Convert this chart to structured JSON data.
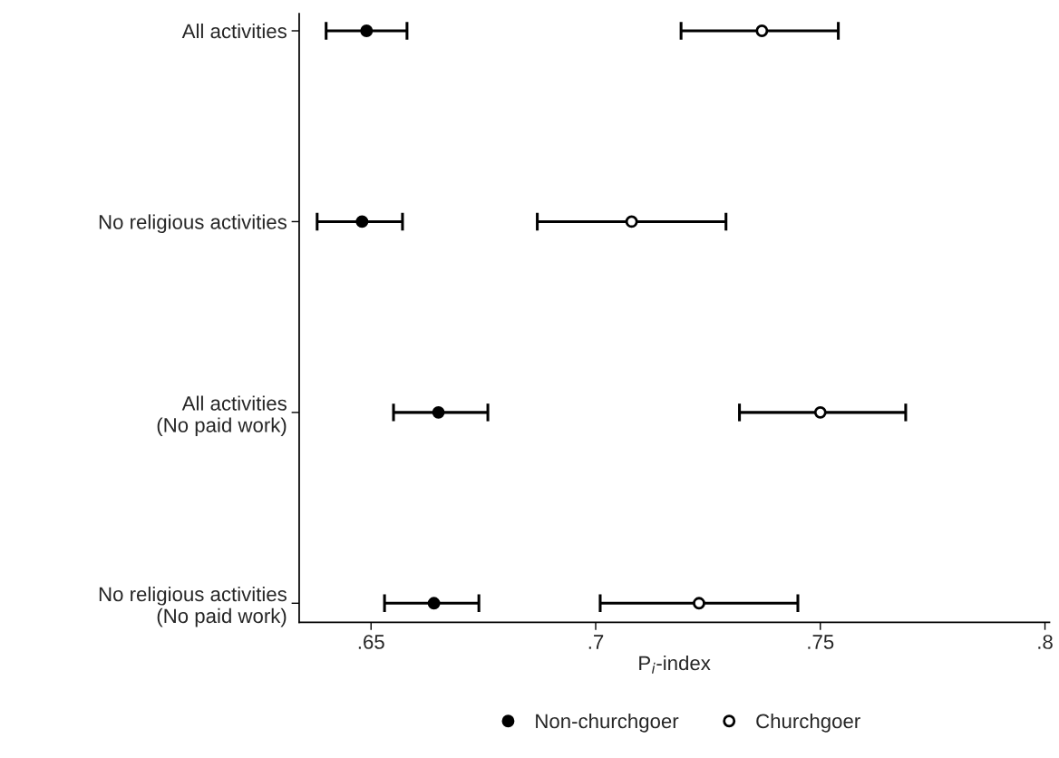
{
  "chart_data": {
    "type": "scatter",
    "orientation": "horizontal",
    "xlabel": "P$_{i}$-index",
    "categories": [
      "All activities",
      "No religious activities",
      "All activities\n(No paid work)",
      "No religious activities\n(No paid work)"
    ],
    "series": [
      {
        "name": "Non-churchgoer",
        "color": "#000000",
        "values": [
          0.649,
          0.648,
          0.665,
          0.664
        ],
        "errors": [
          [
            0.64,
            0.658
          ],
          [
            0.638,
            0.657
          ],
          [
            0.655,
            0.676
          ],
          [
            0.653,
            0.674
          ]
        ]
      },
      {
        "name": "Churchgoer",
        "color": "#000000",
        "values": [
          0.737,
          0.708,
          0.75,
          0.723
        ],
        "errors": [
          [
            0.719,
            0.754
          ],
          [
            0.687,
            0.729
          ],
          [
            0.732,
            0.769
          ],
          [
            0.701,
            0.745
          ]
        ]
      }
    ],
    "xlim": [
      0.634,
      0.801
    ],
    "xticks": [
      {
        "value": 0.65,
        "label": ".65"
      },
      {
        "value": 0.7,
        "label": ".7"
      },
      {
        "value": 0.75,
        "label": ".75"
      },
      {
        "value": 0.8,
        "label": ".8"
      }
    ],
    "marker": "circle",
    "grid": false,
    "legend": "bottom"
  }
}
